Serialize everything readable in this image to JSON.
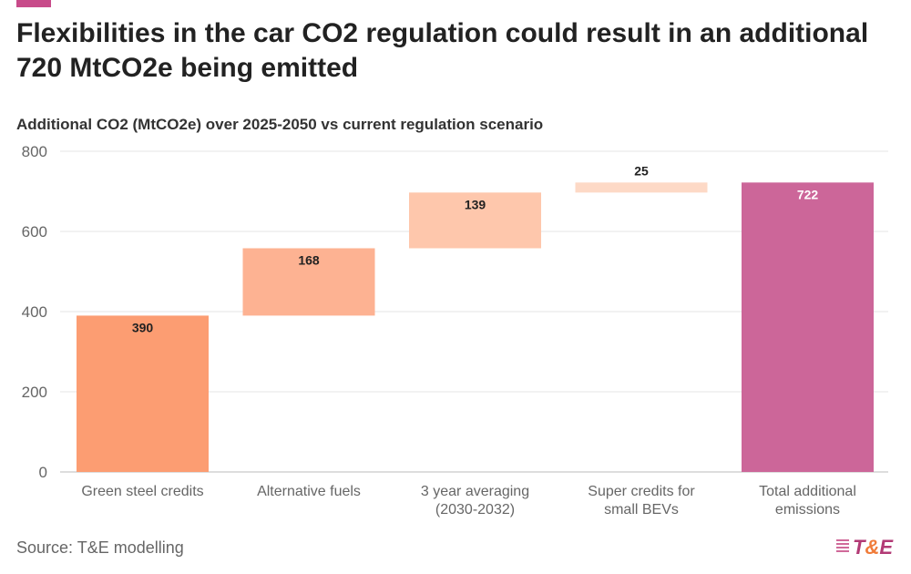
{
  "title": "Flexibilities in the car CO2 regulation could result in an additional 720 MtCO2e being emitted",
  "source": "Source: T&E modelling",
  "logo": "T&E",
  "chart_data": {
    "type": "bar",
    "subtype": "waterfall",
    "title": "Additional CO2 (MtCO2e) over 2025-2050 vs current regulation scenario",
    "categories": [
      "Green steel credits",
      "Alternative fuels",
      "3 year averaging (2030-2032)",
      "Super credits for small BEVs",
      "Total additional emissions"
    ],
    "category_lines": [
      [
        "Green steel credits"
      ],
      [
        "Alternative fuels"
      ],
      [
        "3 year averaging",
        "(2030-2032)"
      ],
      [
        "Super credits for",
        "small BEVs"
      ],
      [
        "Total additional",
        "emissions"
      ]
    ],
    "values": [
      390,
      168,
      139,
      25,
      722
    ],
    "is_total": [
      false,
      false,
      false,
      false,
      true
    ],
    "colors": [
      "#fc9d72",
      "#fdb292",
      "#fec7ac",
      "#fdd9c6",
      "#cc6699"
    ],
    "ylim": [
      0,
      800
    ],
    "yticks": [
      0,
      200,
      400,
      600,
      800
    ],
    "grid": true,
    "xlabel": "",
    "ylabel": ""
  }
}
